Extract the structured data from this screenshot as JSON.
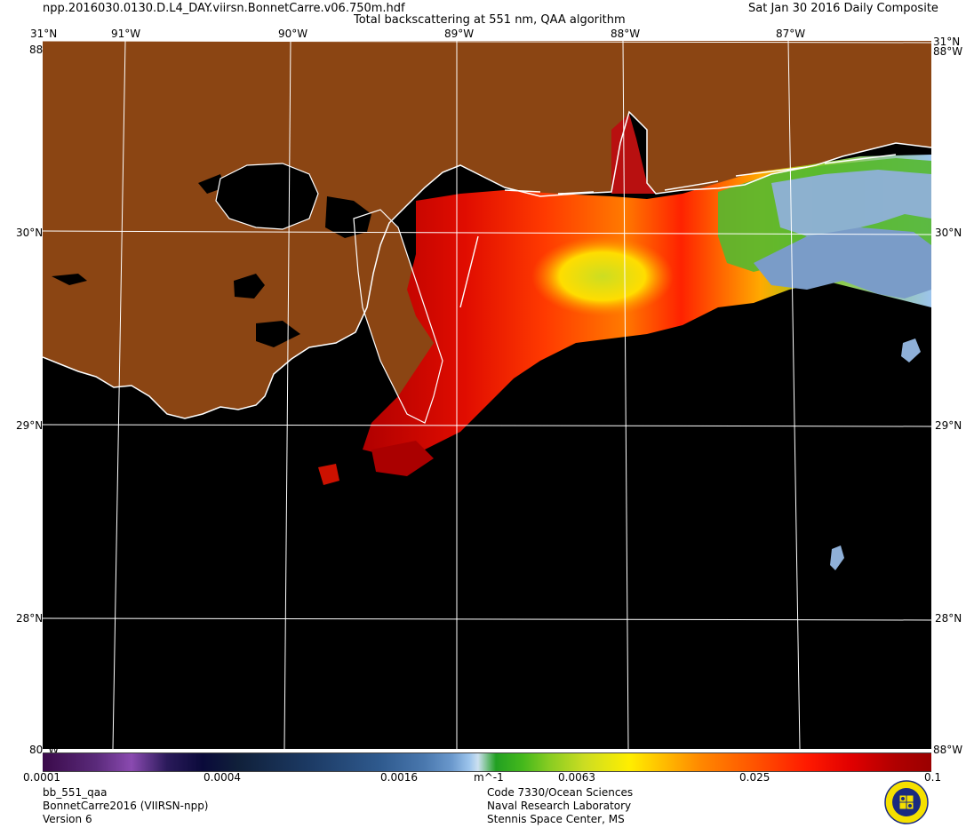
{
  "header": {
    "filename": "npp.2016030.0130.D.L4_DAY.viirsn.BonnetCarre.v06.750m.hdf",
    "title": "Total backscattering at 551 nm, QAA algorithm",
    "date": "Sat Jan 30 2016 Daily Composite"
  },
  "map": {
    "lat_labels": [
      "31°N",
      "30°N",
      "29°N",
      "28°N"
    ],
    "lon_labels": [
      "91°W",
      "90°W",
      "89°W",
      "88°W",
      "87°W"
    ],
    "corner_labels": {
      "top": "88°W",
      "bottom": "80°W"
    },
    "colors": {
      "land": "#8b4513",
      "water": "#000000",
      "coast": "#ffffff"
    }
  },
  "colorbar": {
    "unit": "m^-1",
    "ticks": [
      "0.0001",
      "0.0004",
      "0.0016",
      "0.0063",
      "0.025",
      "0.1"
    ],
    "scale": "log"
  },
  "footer": {
    "left": [
      "bb_551_qaa",
      "BonnetCarre2016 (VIIRSN-npp)",
      "Version 6"
    ],
    "right": [
      "Code 7330/Ocean Sciences",
      "Naval Research Laboratory",
      "Stennis Space Center, MS"
    ]
  }
}
